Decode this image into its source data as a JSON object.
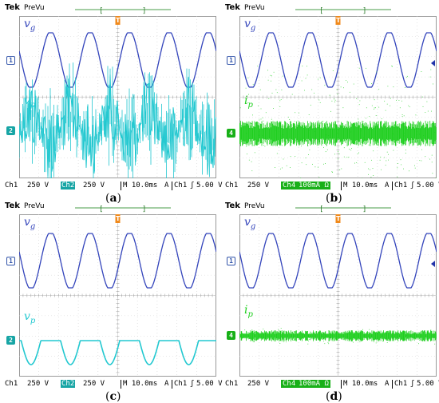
{
  "header": {
    "brand": "Tek",
    "mode": "PreVu"
  },
  "colors": {
    "ch1": "#3344bb",
    "ch2": "#22c8d0",
    "ch4": "#1fcf1f",
    "trigger": "#e07000",
    "grid": "#c8c8c8"
  },
  "panels": [
    {
      "id": "a",
      "caption_left": "(",
      "caption_letter": "a",
      "caption_right": ")",
      "top_label": {
        "var": "v",
        "sub": "g",
        "marker": "1"
      },
      "bottom_label": {
        "var": "v",
        "sub": "p",
        "marker": "2",
        "kind": "cyan-pwm"
      },
      "status": {
        "ch1": "Ch1",
        "ch1_scale": "250 V",
        "ch2": "Ch2",
        "ch2_scale": "250 V",
        "timebase": "M 10.0ms",
        "trig_mode": "A",
        "trig_src": "Ch1",
        "trig_slope": "ʃ",
        "trig_level": "5.00 V"
      }
    },
    {
      "id": "b",
      "caption_left": "(",
      "caption_letter": "b",
      "caption_right": ")",
      "top_label": {
        "var": "v",
        "sub": "g",
        "marker": "1"
      },
      "bottom_label": {
        "var": "i",
        "sub": "p",
        "marker": "4",
        "kind": "green-wide"
      },
      "status": {
        "ch1": "Ch1",
        "ch1_scale": "250 V",
        "ch2": "Ch4",
        "ch2_scale": "100mA Ω",
        "timebase": "M 10.0ms",
        "trig_mode": "A",
        "trig_src": "Ch1",
        "trig_slope": "ʃ",
        "trig_level": "5.00 V"
      }
    },
    {
      "id": "c",
      "caption_left": "(",
      "caption_letter": "c",
      "caption_right": ")",
      "top_label": {
        "var": "v",
        "sub": "g",
        "marker": "1"
      },
      "bottom_label": {
        "var": "v",
        "sub": "p",
        "marker": "2",
        "kind": "cyan-rect"
      },
      "status": {
        "ch1": "Ch1",
        "ch1_scale": "250 V",
        "ch2": "Ch2",
        "ch2_scale": "250 V",
        "timebase": "M 10.0ms",
        "trig_mode": "A",
        "trig_src": "Ch1",
        "trig_slope": "ʃ",
        "trig_level": "5.00 V"
      }
    },
    {
      "id": "d",
      "caption_left": "(",
      "caption_letter": "d",
      "caption_right": ")",
      "top_label": {
        "var": "v",
        "sub": "g",
        "marker": "1"
      },
      "bottom_label": {
        "var": "i",
        "sub": "p",
        "marker": "4",
        "kind": "green-narrow"
      },
      "status": {
        "ch1": "Ch1",
        "ch1_scale": "250 V",
        "ch2": "Ch4",
        "ch2_scale": "100mA Ω",
        "timebase": "M 10.0ms",
        "trig_mode": "A",
        "trig_src": "Ch1",
        "trig_slope": "ʃ",
        "trig_level": "5.00 V"
      }
    }
  ],
  "chart_data": [
    {
      "type": "line",
      "panel": "a",
      "grid": true,
      "divisions": {
        "x": 10,
        "y": 8
      },
      "series": [
        {
          "name": "v_g",
          "cycles": 5,
          "per_div": "250 V"
        },
        {
          "name": "v_p",
          "per_div": "250 V"
        }
      ],
      "timebase": "10.0ms"
    },
    {
      "type": "line",
      "panel": "b",
      "grid": true,
      "divisions": {
        "x": 10,
        "y": 8
      },
      "series": [
        {
          "name": "v_g",
          "cycles": 5,
          "per_div": "250 V"
        },
        {
          "name": "i_p",
          "per_div": "100mA"
        }
      ],
      "timebase": "10.0ms"
    },
    {
      "type": "line",
      "panel": "c",
      "grid": true,
      "divisions": {
        "x": 10,
        "y": 8
      },
      "series": [
        {
          "name": "v_g",
          "cycles": 5,
          "per_div": "250 V"
        },
        {
          "name": "v_p",
          "per_div": "250 V"
        }
      ],
      "timebase": "10.0ms"
    },
    {
      "type": "line",
      "panel": "d",
      "grid": true,
      "divisions": {
        "x": 10,
        "y": 8
      },
      "series": [
        {
          "name": "v_g",
          "cycles": 5,
          "per_div": "250 V"
        },
        {
          "name": "i_p",
          "per_div": "100mA"
        }
      ],
      "timebase": "10.0ms"
    }
  ]
}
